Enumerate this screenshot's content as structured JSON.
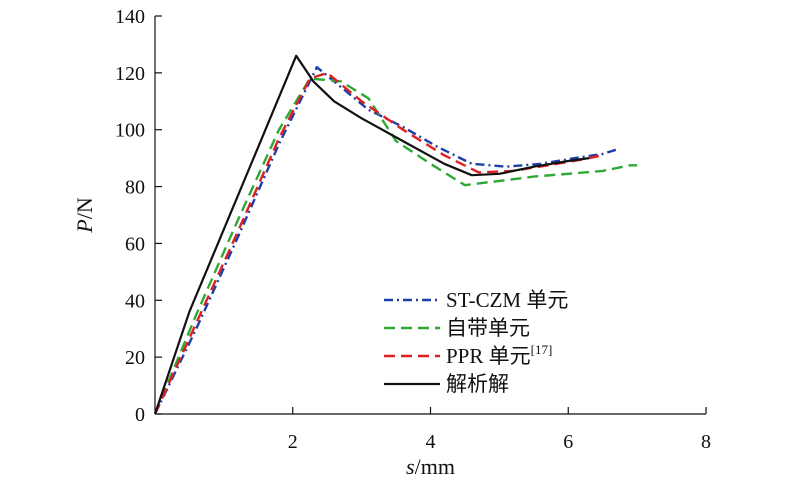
{
  "chart_data": {
    "type": "line",
    "xlabel": {
      "italic": "s",
      "unit": "/mm"
    },
    "ylabel": {
      "italic": "P",
      "unit": "/N"
    },
    "xlim": [
      0,
      8
    ],
    "ylim": [
      0,
      140
    ],
    "xticks": [
      "2",
      "4",
      "6",
      "8"
    ],
    "yticks": [
      "0",
      "20",
      "40",
      "60",
      "80",
      "100",
      "120",
      "140"
    ],
    "grid": false,
    "legend_position": "bottom-right",
    "series": [
      {
        "name": "ST-CZM 单元",
        "color": "#1f3fa8",
        "dash": "dashdot",
        "x": [
          0,
          0.6,
          1.2,
          1.8,
          2.35,
          2.7,
          3.1,
          3.6,
          4.1,
          4.6,
          5.1,
          5.6,
          6.1,
          6.5,
          6.7
        ],
        "y": [
          0,
          30,
          62,
          95,
          122,
          115,
          107,
          101,
          94,
          88,
          87,
          88,
          90,
          91.5,
          93
        ]
      },
      {
        "name": "自带单元",
        "color": "#2ea836",
        "dash": "dash",
        "x": [
          0,
          0.6,
          1.2,
          1.8,
          2.25,
          2.7,
          3.1,
          3.5,
          4.0,
          4.5,
          5.0,
          5.5,
          6.0,
          6.5,
          6.9,
          7.0
        ],
        "y": [
          0,
          35,
          68,
          100,
          118,
          117,
          111,
          96,
          88,
          80.5,
          82,
          83.5,
          84.5,
          85.5,
          87.5,
          87.5
        ]
      },
      {
        "name": "PPR 单元",
        "citation": "[17]",
        "color": "#e02020",
        "dash": "dash",
        "x": [
          0,
          0.6,
          1.2,
          1.8,
          2.25,
          2.5,
          3.0,
          3.6,
          4.2,
          4.7,
          5.2,
          5.7,
          6.2,
          6.5
        ],
        "y": [
          0,
          32,
          64,
          97,
          118,
          120,
          110,
          100,
          91,
          85,
          85.5,
          87.5,
          89.5,
          91
        ]
      },
      {
        "name": "解析解",
        "color": "#111111",
        "dash": "solid",
        "x": [
          0,
          0.5,
          1.0,
          1.5,
          2.05,
          2.3,
          2.6,
          3.0,
          3.6,
          4.2,
          4.6,
          5.0,
          5.5,
          6.0,
          6.3
        ],
        "y": [
          0,
          36,
          65,
          94,
          126,
          117,
          110,
          104,
          96,
          88,
          84,
          84.5,
          87,
          89,
          90
        ]
      }
    ]
  }
}
